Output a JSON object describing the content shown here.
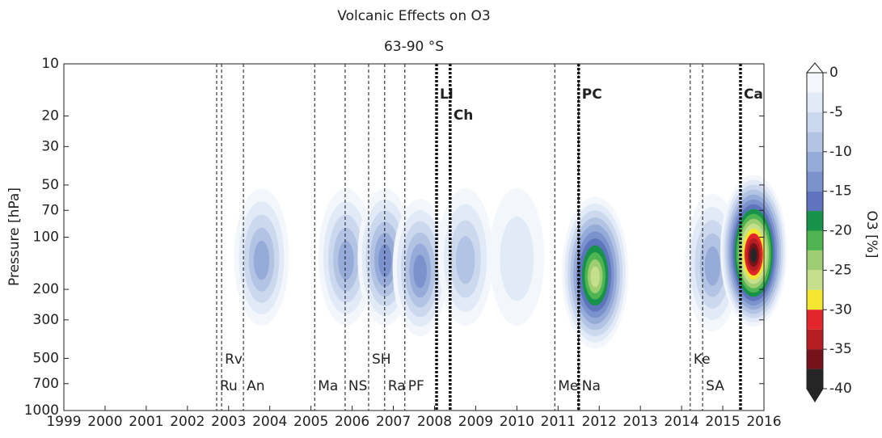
{
  "chart_data": {
    "type": "contour",
    "title": "Volcanic Effects on O3",
    "subtitle": "63-90 °S",
    "y_label": "Pressure [hPa]",
    "colorbar_label": "O3 [%]",
    "log_y": true,
    "xlim": [
      1999,
      2016
    ],
    "xticks": [
      1999,
      2000,
      2001,
      2002,
      2003,
      2004,
      2005,
      2006,
      2007,
      2008,
      2009,
      2010,
      2011,
      2012,
      2013,
      2014,
      2015,
      2016
    ],
    "ylim": [
      1000,
      10
    ],
    "yticks": [
      10,
      20,
      30,
      50,
      70,
      100,
      200,
      300,
      500,
      700,
      1000
    ],
    "levels": [
      0,
      -2.5,
      -5,
      -7.5,
      -10,
      -12.5,
      -15,
      -17.5,
      -20,
      -22.5,
      -25,
      -27.5,
      -30,
      -32.5,
      -35,
      -37.5,
      -40
    ],
    "level_colors": [
      "#f3f7fc",
      "#e1eaf6",
      "#cbd8ee",
      "#b2c3e4",
      "#97abd9",
      "#7c92cc",
      "#5e75bd",
      "#17924a",
      "#4fb552",
      "#9fcd72",
      "#c6df8c",
      "#f4e62e",
      "#e2262b",
      "#b41d22",
      "#76121a",
      "#262626"
    ],
    "colorbar_ticks": [
      0,
      -5,
      -10,
      -15,
      -20,
      -25,
      -30,
      -35,
      -40
    ],
    "events": [
      {
        "name": "Ru",
        "year": 2002.71,
        "major": false
      },
      {
        "name": "Rv",
        "year": 2002.83,
        "major": false
      },
      {
        "name": "An",
        "year": 2003.36,
        "major": false
      },
      {
        "name": "Ma",
        "year": 2005.09,
        "major": false
      },
      {
        "name": "NS",
        "year": 2005.83,
        "major": false
      },
      {
        "name": "SH",
        "year": 2006.4,
        "major": false
      },
      {
        "name": "Ra",
        "year": 2006.79,
        "major": false
      },
      {
        "name": "PF",
        "year": 2007.28,
        "major": false
      },
      {
        "name": "Ll",
        "year": 2008.05,
        "major": true
      },
      {
        "name": "Ch",
        "year": 2008.38,
        "major": true
      },
      {
        "name": "Me",
        "year": 2010.92,
        "major": false
      },
      {
        "name": "PC",
        "year": 2011.5,
        "major": true
      },
      {
        "name": "Na",
        "year": 2011.5,
        "major": false
      },
      {
        "name": "Ke",
        "year": 2014.21,
        "major": false
      },
      {
        "name": "SA",
        "year": 2014.51,
        "major": false
      },
      {
        "name": "Ca",
        "year": 2015.43,
        "major": true
      }
    ],
    "anomalies": [
      {
        "year": 2003.8,
        "pressure": 130,
        "value": -12.5
      },
      {
        "year": 2005.85,
        "pressure": 130,
        "value": -12.5
      },
      {
        "year": 2006.8,
        "pressure": 130,
        "value": -15
      },
      {
        "year": 2007.65,
        "pressure": 150,
        "value": -15
      },
      {
        "year": 2008.75,
        "pressure": 130,
        "value": -10
      },
      {
        "year": 2010.0,
        "pressure": 130,
        "value": -5
      },
      {
        "year": 2011.9,
        "pressure": 160,
        "value": -27.5
      },
      {
        "year": 2014.75,
        "pressure": 140,
        "value": -12.5
      },
      {
        "year": 2015.75,
        "pressure": 120,
        "value": -40
      }
    ]
  }
}
